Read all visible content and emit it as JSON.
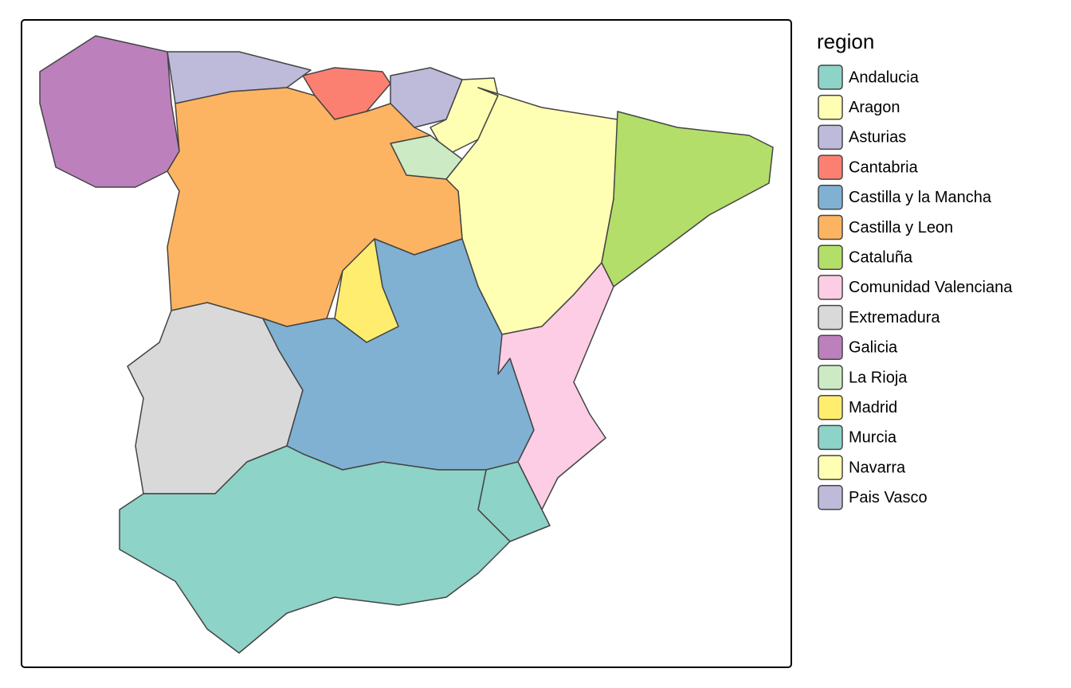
{
  "legend": {
    "title": "region",
    "items": [
      {
        "name": "Andalucia",
        "color": "#8dd3c7"
      },
      {
        "name": "Aragon",
        "color": "#ffffb3"
      },
      {
        "name": "Asturias",
        "color": "#bebada"
      },
      {
        "name": "Cantabria",
        "color": "#fb8072"
      },
      {
        "name": "Castilla y la Mancha",
        "color": "#80b1d3"
      },
      {
        "name": "Castilla y Leon",
        "color": "#fdb462"
      },
      {
        "name": "Cataluña",
        "color": "#b3de69"
      },
      {
        "name": "Comunidad Valenciana",
        "color": "#fccde5"
      },
      {
        "name": "Extremadura",
        "color": "#d9d9d9"
      },
      {
        "name": "Galicia",
        "color": "#bc80bd"
      },
      {
        "name": "La Rioja",
        "color": "#ccebc5"
      },
      {
        "name": "Madrid",
        "color": "#ffed6f"
      },
      {
        "name": "Murcia",
        "color": "#8dd3c7"
      },
      {
        "name": "Navarra",
        "color": "#ffffb3"
      },
      {
        "name": "Pais Vasco",
        "color": "#bebada"
      }
    ]
  }
}
